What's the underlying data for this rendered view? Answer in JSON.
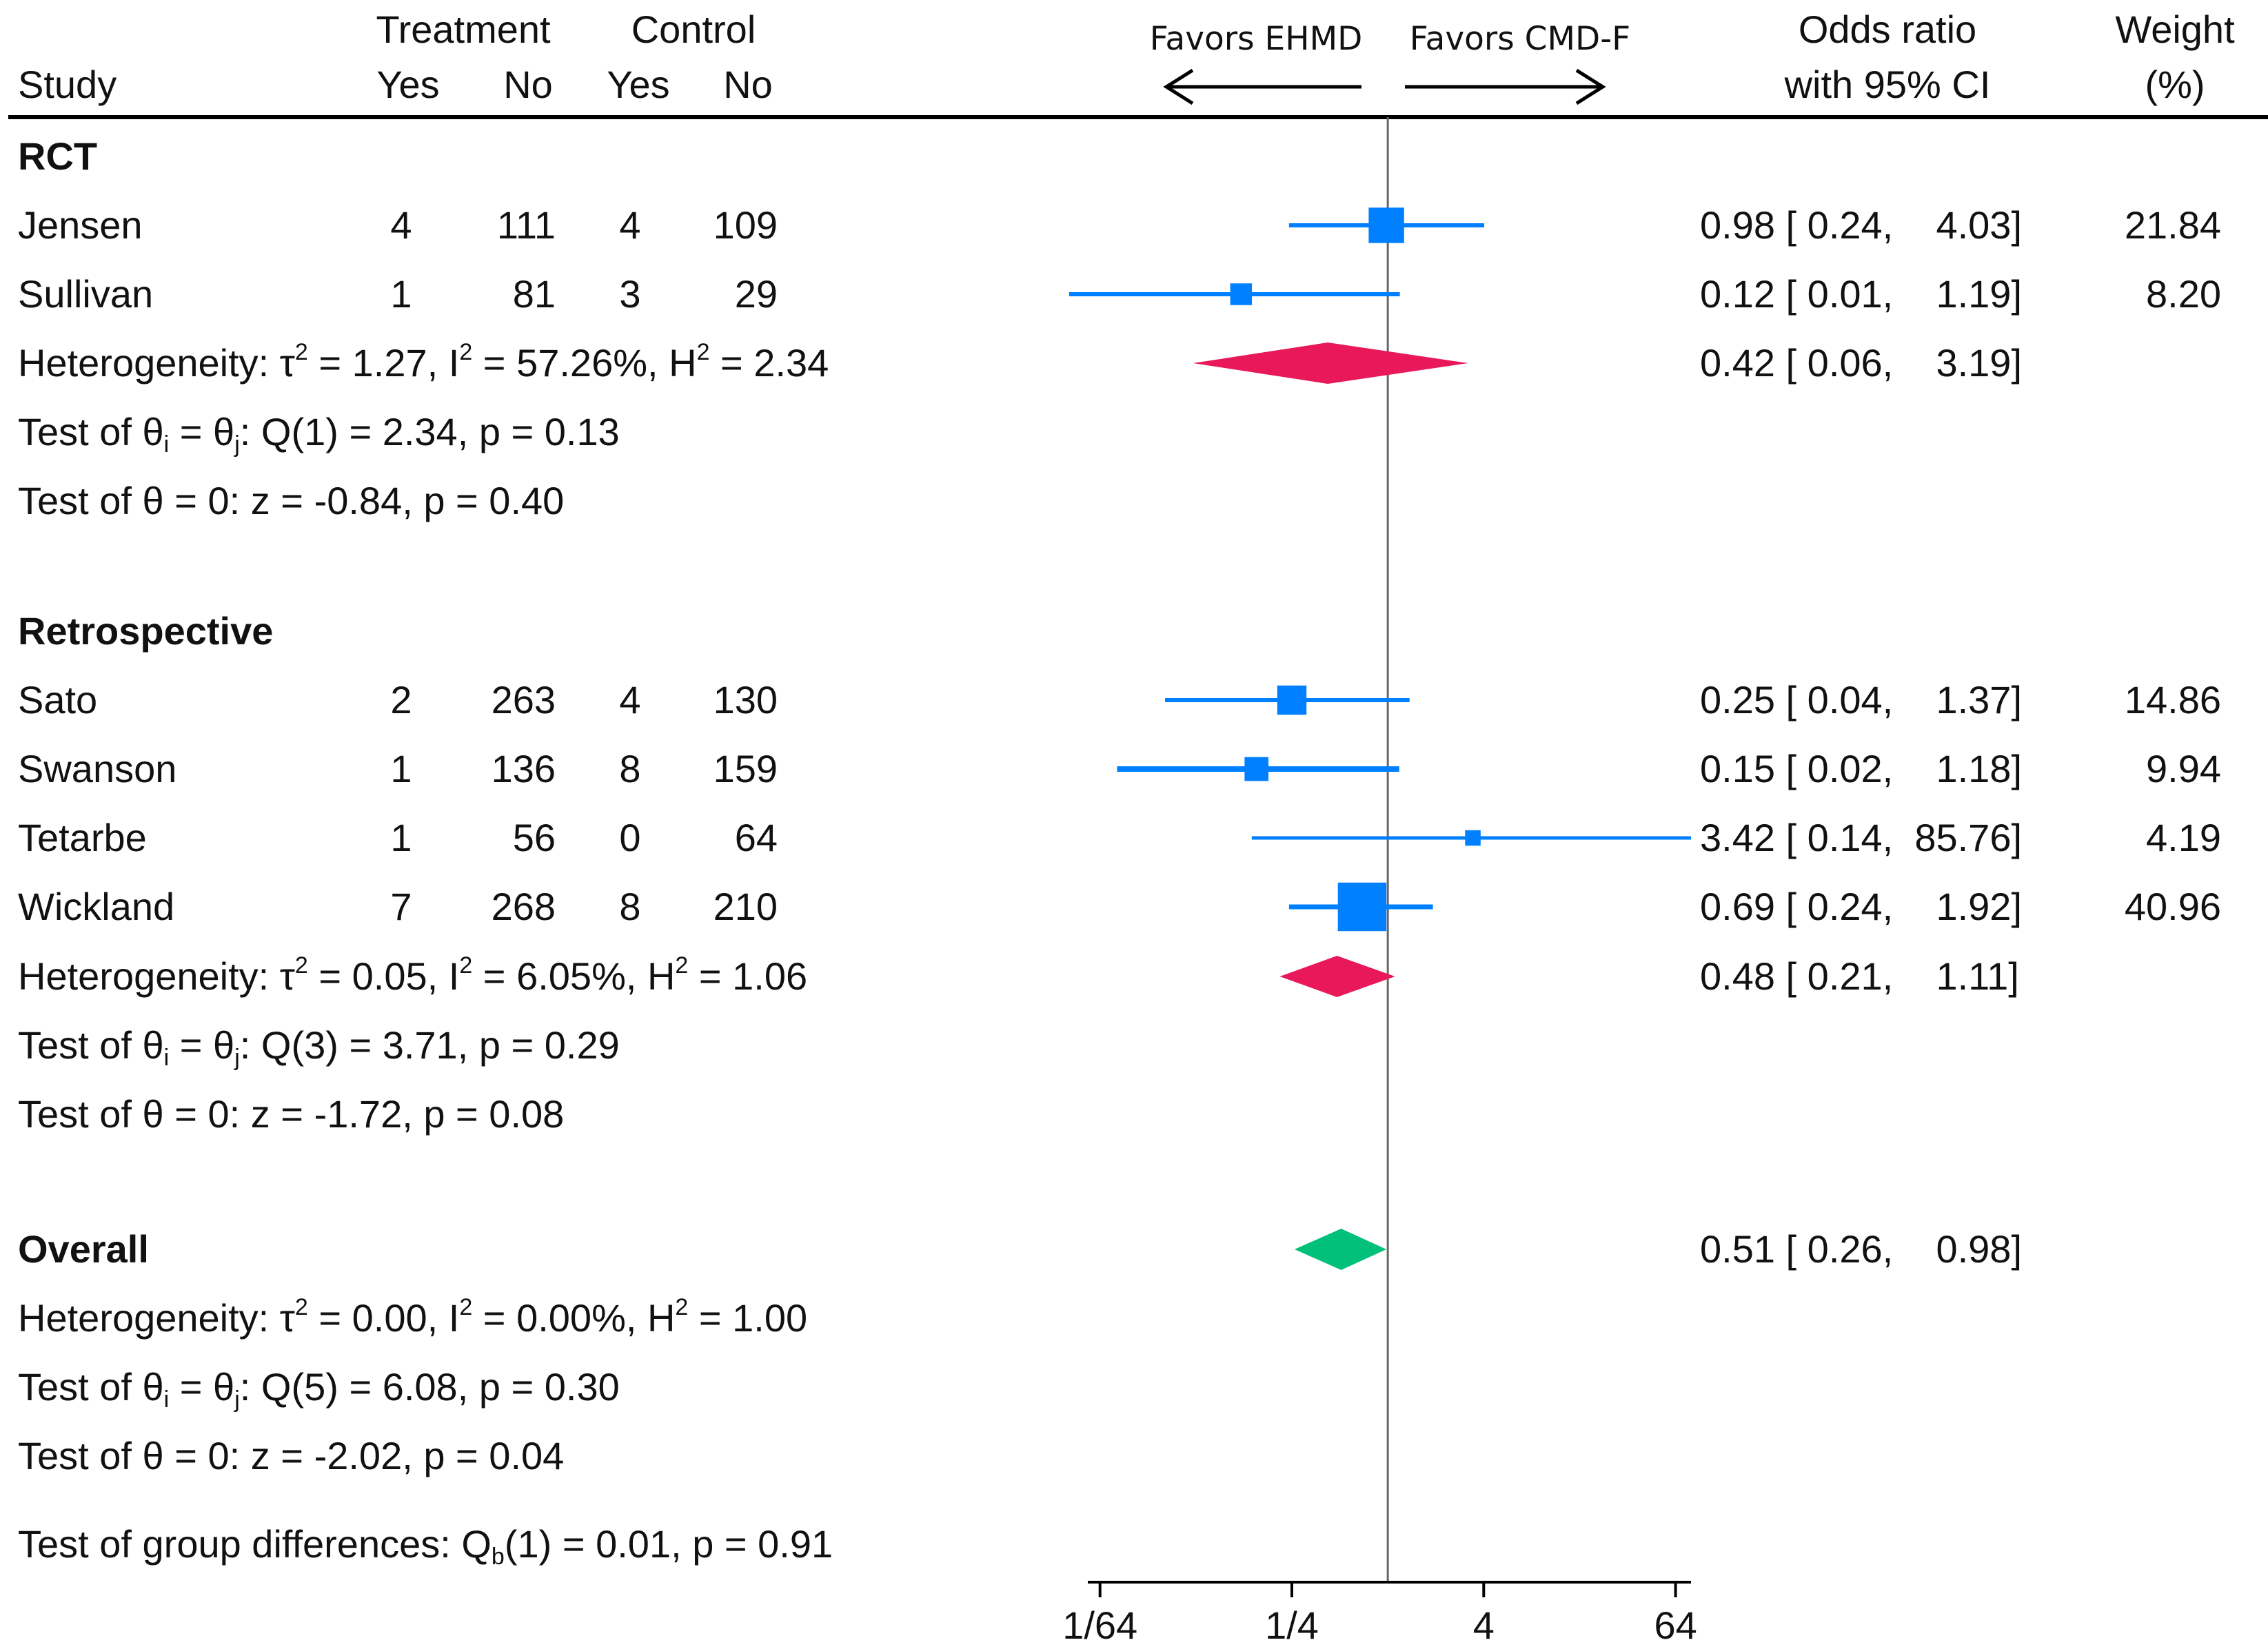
{
  "chart_data": {
    "type": "forest",
    "x_scale": "log2",
    "x_ticks": [
      "1/64",
      "1/4",
      "4",
      "64"
    ],
    "x_tick_values": [
      0.015625,
      0.25,
      4,
      64
    ],
    "xlim": [
      0.0131,
      80
    ],
    "null_line": 1,
    "favor_left": "Favors EHMD",
    "favor_right": "Favors CMD-F",
    "colors": {
      "study": "#0080FF",
      "rct_pooled": "#E8185A",
      "retro_pooled": "#E8185A",
      "overall": "#00C07A",
      "line": "#000000"
    },
    "header": {
      "study": "Study",
      "treatment": "Treatment",
      "control": "Control",
      "yes": "Yes",
      "no": "No",
      "or_line1": "Odds ratio",
      "or_line2": "with 95% CI",
      "weight_line1": "Weight",
      "weight_line2": "(%)"
    },
    "groups": [
      {
        "label": "RCT",
        "studies": [
          {
            "name": "Jensen",
            "t_yes": "4",
            "t_no": "111",
            "c_yes": "4",
            "c_no": "109",
            "or": 0.98,
            "lo": 0.24,
            "hi": 4.03,
            "ci_text": "0.98 [ 0.24,    4.03]",
            "weight": "21.84"
          },
          {
            "name": "Sullivan",
            "t_yes": "1",
            "t_no": "81",
            "c_yes": "3",
            "c_no": "29",
            "or": 0.12,
            "lo": 0.01,
            "hi": 1.19,
            "ci_text": "0.12 [ 0.01,    1.19]",
            "weight": "8.20"
          }
        ],
        "pooled": {
          "or": 0.42,
          "lo": 0.06,
          "hi": 3.19,
          "ci_text": "0.42 [ 0.06,    3.19]"
        },
        "heterogeneity": {
          "prefix": "Heterogeneity: τ",
          "tau2": " = 1.27, I",
          "i2": " = 57.26%, H",
          "h2": " = 2.34",
          "sup": "2"
        },
        "q_test": {
          "prefix": "Test of θ",
          "sub_i": "i",
          "eq": " = θ",
          "sub_j": "j",
          "rest": ": Q(1) = 2.34, p = 0.13"
        },
        "z_test": "Test of θ = 0: z = -0.84, p = 0.40"
      },
      {
        "label": "Retrospective",
        "studies": [
          {
            "name": "Sato",
            "t_yes": "2",
            "t_no": "263",
            "c_yes": "4",
            "c_no": "130",
            "or": 0.25,
            "lo": 0.04,
            "hi": 1.37,
            "ci_text": "0.25 [ 0.04,    1.37]",
            "weight": "14.86"
          },
          {
            "name": "Swanson",
            "t_yes": "1",
            "t_no": "136",
            "c_yes": "8",
            "c_no": "159",
            "or": 0.15,
            "lo": 0.02,
            "hi": 1.18,
            "ci_text": "0.15 [ 0.02,    1.18]",
            "weight": "9.94"
          },
          {
            "name": "Tetarbe",
            "t_yes": "1",
            "t_no": "56",
            "c_yes": "0",
            "c_no": "64",
            "or": 3.42,
            "lo": 0.14,
            "hi": 85.76,
            "ci_text": "3.42 [ 0.14,  85.76]",
            "weight": "4.19"
          },
          {
            "name": "Wickland",
            "t_yes": "7",
            "t_no": "268",
            "c_yes": "8",
            "c_no": "210",
            "or": 0.69,
            "lo": 0.24,
            "hi": 1.92,
            "ci_text": "0.69 [ 0.24,    1.92]",
            "weight": "40.96"
          }
        ],
        "pooled": {
          "or": 0.48,
          "lo": 0.21,
          "hi": 1.11,
          "ci_text": "0.48 [ 0.21,    1.11]"
        },
        "heterogeneity": {
          "prefix": "Heterogeneity: τ",
          "tau2": " = 0.05, I",
          "i2": " = 6.05%, H",
          "h2": " = 1.06",
          "sup": "2"
        },
        "q_test": {
          "prefix": "Test of θ",
          "sub_i": "i",
          "eq": " = θ",
          "sub_j": "j",
          "rest": ": Q(3) = 3.71, p = 0.29"
        },
        "z_test": "Test of θ = 0: z = -1.72, p = 0.08"
      }
    ],
    "overall": {
      "label": "Overall",
      "pooled": {
        "or": 0.51,
        "lo": 0.26,
        "hi": 0.98,
        "ci_text": "0.51 [ 0.26,    0.98]"
      },
      "heterogeneity": {
        "prefix": "Heterogeneity: τ",
        "tau2": " = 0.00, I",
        "i2": " = 0.00%, H",
        "h2": " = 1.00",
        "sup": "2"
      },
      "q_test": {
        "prefix": "Test of θ",
        "sub_i": "i",
        "eq": " = θ",
        "sub_j": "j",
        "rest": ": Q(5) = 6.08, p = 0.30"
      },
      "z_test": "Test of θ = 0: z = -2.02, p = 0.04",
      "group_diff": {
        "prefix": "Test of group differences: Q",
        "sub": "b",
        "rest": "(1) = 0.01, p = 0.91"
      }
    }
  }
}
